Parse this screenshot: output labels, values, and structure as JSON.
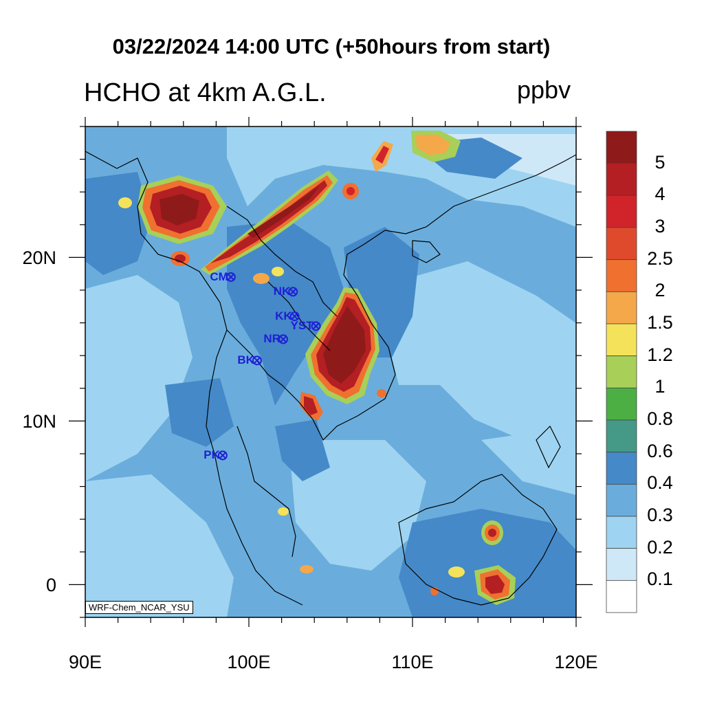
{
  "title": "03/22/2024 14:00 UTC (+50hours from start)",
  "subtitle_left": "HCHO at 4km A.G.L.",
  "subtitle_right": "ppbv",
  "credit": "WRF-Chem_NCAR_YSU",
  "x_axis": {
    "ticks": [
      "90E",
      "100E",
      "110E",
      "120E"
    ],
    "range_lon": [
      90,
      120
    ]
  },
  "y_axis": {
    "ticks": [
      "20N",
      "10N",
      "0"
    ],
    "range_lat": [
      -2,
      28
    ]
  },
  "colorbar": {
    "labels": [
      "5",
      "4",
      "3",
      "2.5",
      "2",
      "1.5",
      "1.2",
      "1",
      "0.8",
      "0.6",
      "0.4",
      "0.3",
      "0.2",
      "0.1"
    ],
    "colors": [
      "#8f1a1a",
      "#b41f23",
      "#d1232a",
      "#e04a2c",
      "#f07030",
      "#f5a84a",
      "#f4e35a",
      "#a8cf58",
      "#4caf44",
      "#449a86",
      "#4589c8",
      "#6aaddc",
      "#9ed4f1",
      "#cfe8f8",
      "#ffffff"
    ]
  },
  "stations": [
    {
      "code": "CM",
      "lon": 98.9,
      "lat": 18.8
    },
    {
      "code": "NK",
      "lon": 102.7,
      "lat": 17.9
    },
    {
      "code": "KK",
      "lon": 102.8,
      "lat": 16.4
    },
    {
      "code": "YST",
      "lon": 104.1,
      "lat": 15.8
    },
    {
      "code": "NR",
      "lon": 102.1,
      "lat": 15.0
    },
    {
      "code": "BK",
      "lon": 100.5,
      "lat": 13.7
    },
    {
      "code": "PK",
      "lon": 98.4,
      "lat": 7.9
    }
  ],
  "colors": {
    "background_field": "#6aaddc",
    "station": "#1f1fd6"
  }
}
